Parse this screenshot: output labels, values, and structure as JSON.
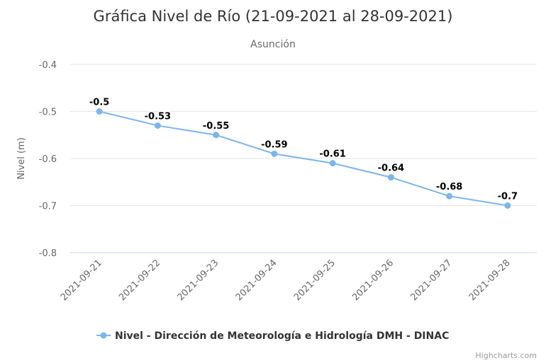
{
  "chart_data": {
    "type": "line",
    "title": "Gráfica Nivel de Río (21-09-2021 al 28-09-2021)",
    "subtitle": "Asunción",
    "ylabel": "Nivel (m)",
    "xlabel": "",
    "categories": [
      "2021-09-21",
      "2021-09-22",
      "2021-09-23",
      "2021-09-24",
      "2021-09-25",
      "2021-09-26",
      "2021-09-27",
      "2021-09-28"
    ],
    "series": [
      {
        "name": "Nivel - Dirección de Meteorología e Hidrología DMH - DINAC",
        "values": [
          -0.5,
          -0.53,
          -0.55,
          -0.59,
          -0.61,
          -0.64,
          -0.68,
          -0.7
        ],
        "color": "#7cb5ec"
      }
    ],
    "ylim": [
      -0.8,
      -0.4
    ],
    "yticks": [
      -0.4,
      -0.5,
      -0.6,
      -0.7,
      -0.8
    ],
    "ytick_labels": [
      "-0.4",
      "-0.5",
      "-0.6",
      "-0.7",
      "-0.8"
    ],
    "data_labels": [
      "-0.5",
      "-0.53",
      "-0.55",
      "-0.59",
      "-0.61",
      "-0.64",
      "-0.68",
      "-0.7"
    ],
    "grid": true,
    "legend": "bottom-center",
    "credits": "Highcharts.com"
  }
}
